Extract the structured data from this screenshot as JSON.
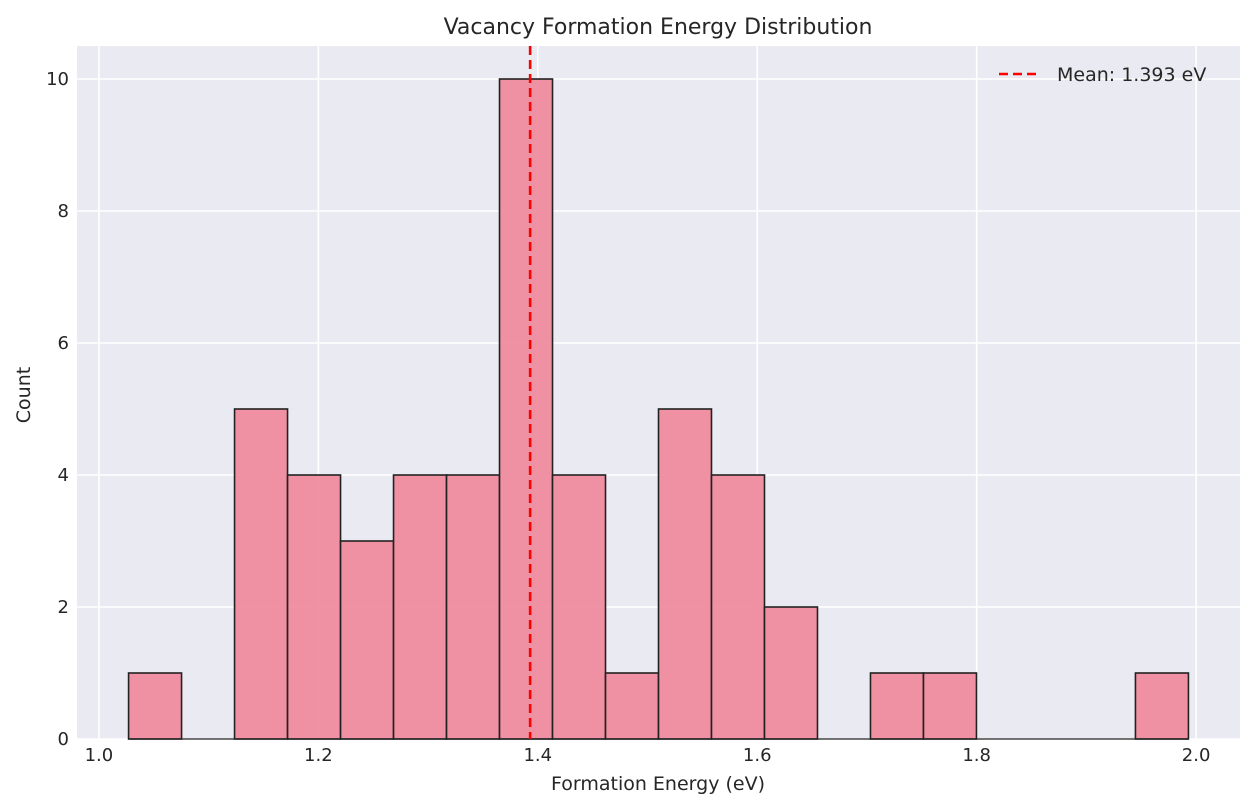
{
  "chart_data": {
    "type": "bar",
    "subtype": "histogram",
    "title": "Vacancy Formation Energy Distribution",
    "xlabel": "Formation Energy (eV)",
    "ylabel": "Count",
    "xlim": [
      0.98,
      2.04
    ],
    "ylim": [
      0,
      10.5
    ],
    "xticks": [
      1.0,
      1.2,
      1.4,
      1.6,
      1.8,
      2.0
    ],
    "xtick_labels": [
      "1.0",
      "1.2",
      "1.4",
      "1.6",
      "1.8",
      "2.0"
    ],
    "yticks": [
      0,
      2,
      4,
      6,
      8,
      10
    ],
    "ytick_labels": [
      "0",
      "2",
      "4",
      "6",
      "8",
      "10"
    ],
    "bin_edges": [
      1.027,
      1.0753,
      1.1236,
      1.1719,
      1.2202,
      1.2685,
      1.3168,
      1.3651,
      1.4134,
      1.4617,
      1.51,
      1.5583,
      1.6066,
      1.6549,
      1.7032,
      1.7515,
      1.7998,
      1.8481,
      1.8964,
      1.9447,
      1.993
    ],
    "counts": [
      1,
      0,
      5,
      4,
      3,
      4,
      4,
      10,
      4,
      1,
      5,
      4,
      2,
      0,
      1,
      1,
      0,
      0,
      0,
      1
    ],
    "mean_line": {
      "value": 1.393,
      "label": "Mean: 1.393 eV",
      "color": "#ff0000",
      "style": "dashed"
    },
    "bar_color": "#f0899c",
    "bar_edge_color": "#222222",
    "background_color": "#eaeaf2",
    "grid": true,
    "grid_color": "#ffffff",
    "legend_position": "top-right"
  }
}
